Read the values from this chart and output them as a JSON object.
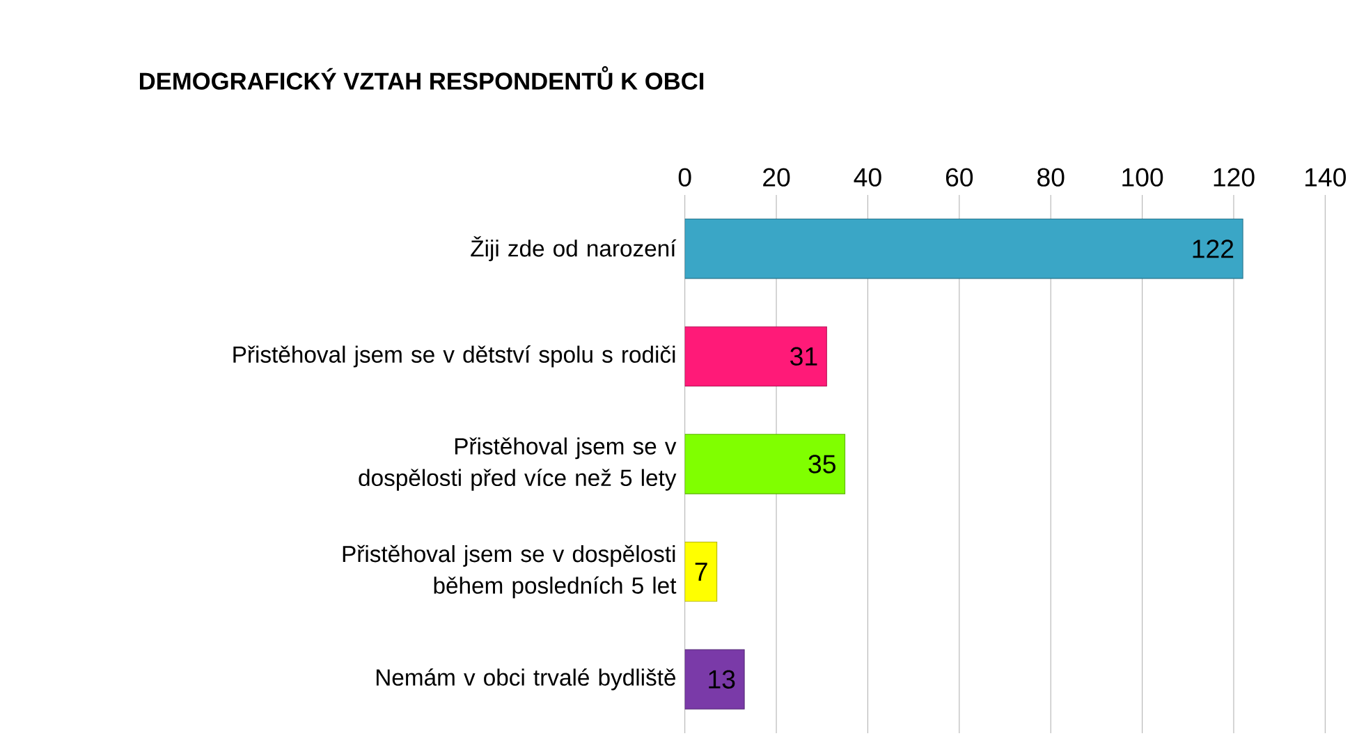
{
  "chart_data": {
    "type": "bar",
    "orientation": "horizontal",
    "title": "DEMOGRAFICKÝ VZTAH RESPONDENTŮ K OBCI",
    "categories": [
      "Žiji zde od narození",
      "Přistěhoval jsem se v dětství spolu s rodiči",
      "Přistěhoval jsem se v dospělosti před více než 5 lety",
      "Přistěhoval jsem se v dospělosti během posledních 5 let",
      "Nemám v obci trvalé bydliště"
    ],
    "values": [
      122,
      31,
      35,
      7,
      13
    ],
    "colors": [
      "#3aa6c6",
      "#ff1a78",
      "#80ff00",
      "#ffff00",
      "#7a3aa8"
    ],
    "xlim": [
      0,
      140
    ],
    "xticks": [
      0,
      20,
      40,
      60,
      80,
      100,
      120,
      140
    ],
    "grid": "x",
    "data_labels": true
  }
}
